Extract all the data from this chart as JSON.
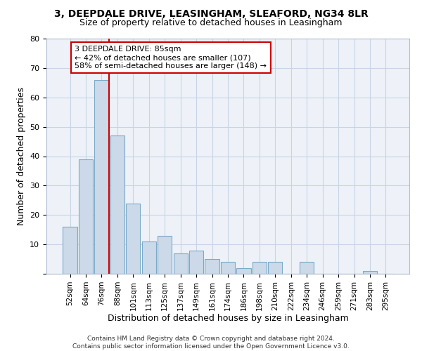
{
  "title1": "3, DEEPDALE DRIVE, LEASINGHAM, SLEAFORD, NG34 8LR",
  "title2": "Size of property relative to detached houses in Leasingham",
  "xlabel": "Distribution of detached houses by size in Leasingham",
  "ylabel": "Number of detached properties",
  "categories": [
    "52sqm",
    "64sqm",
    "76sqm",
    "88sqm",
    "101sqm",
    "113sqm",
    "125sqm",
    "137sqm",
    "149sqm",
    "161sqm",
    "174sqm",
    "186sqm",
    "198sqm",
    "210sqm",
    "222sqm",
    "234sqm",
    "246sqm",
    "259sqm",
    "271sqm",
    "283sqm",
    "295sqm"
  ],
  "values": [
    16,
    39,
    66,
    47,
    24,
    11,
    13,
    7,
    8,
    5,
    4,
    2,
    4,
    4,
    0,
    4,
    0,
    0,
    0,
    1,
    0
  ],
  "bar_color": "#ccd9e8",
  "bar_edge_color": "#7aaac8",
  "annotation_text": "3 DEEPDALE DRIVE: 85sqm\n← 42% of detached houses are smaller (107)\n58% of semi-detached houses are larger (148) →",
  "annotation_box_color": "#ffffff",
  "annotation_box_edge": "#cc0000",
  "line_color": "#cc0000",
  "grid_color": "#c8d4e4",
  "background_color": "#eef2f8",
  "footer_text": "Contains HM Land Registry data © Crown copyright and database right 2024.\nContains public sector information licensed under the Open Government Licence v3.0.",
  "ylim": [
    0,
    80
  ],
  "yticks": [
    0,
    10,
    20,
    30,
    40,
    50,
    60,
    70,
    80
  ]
}
